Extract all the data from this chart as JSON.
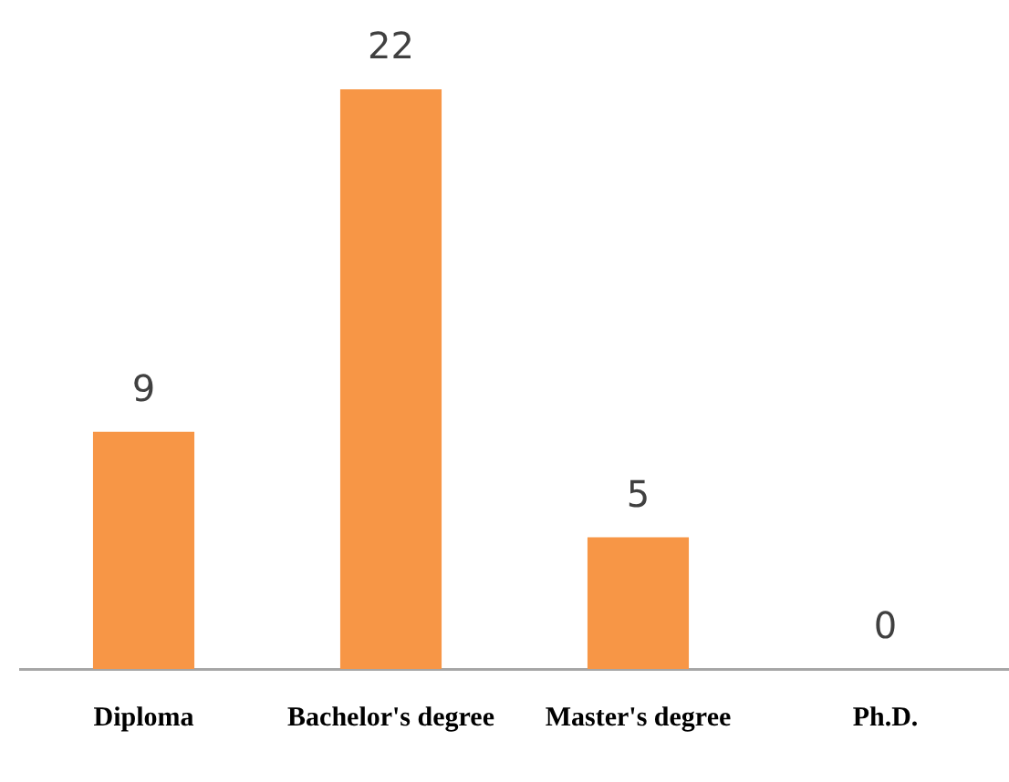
{
  "chart_data": {
    "type": "bar",
    "categories": [
      "Diploma",
      "Bachelor's degree",
      "Master's degree",
      "Ph.D."
    ],
    "values": [
      9,
      22,
      5,
      0
    ],
    "color": "#f79646",
    "data_labels": true,
    "grid": false,
    "legend": false
  }
}
